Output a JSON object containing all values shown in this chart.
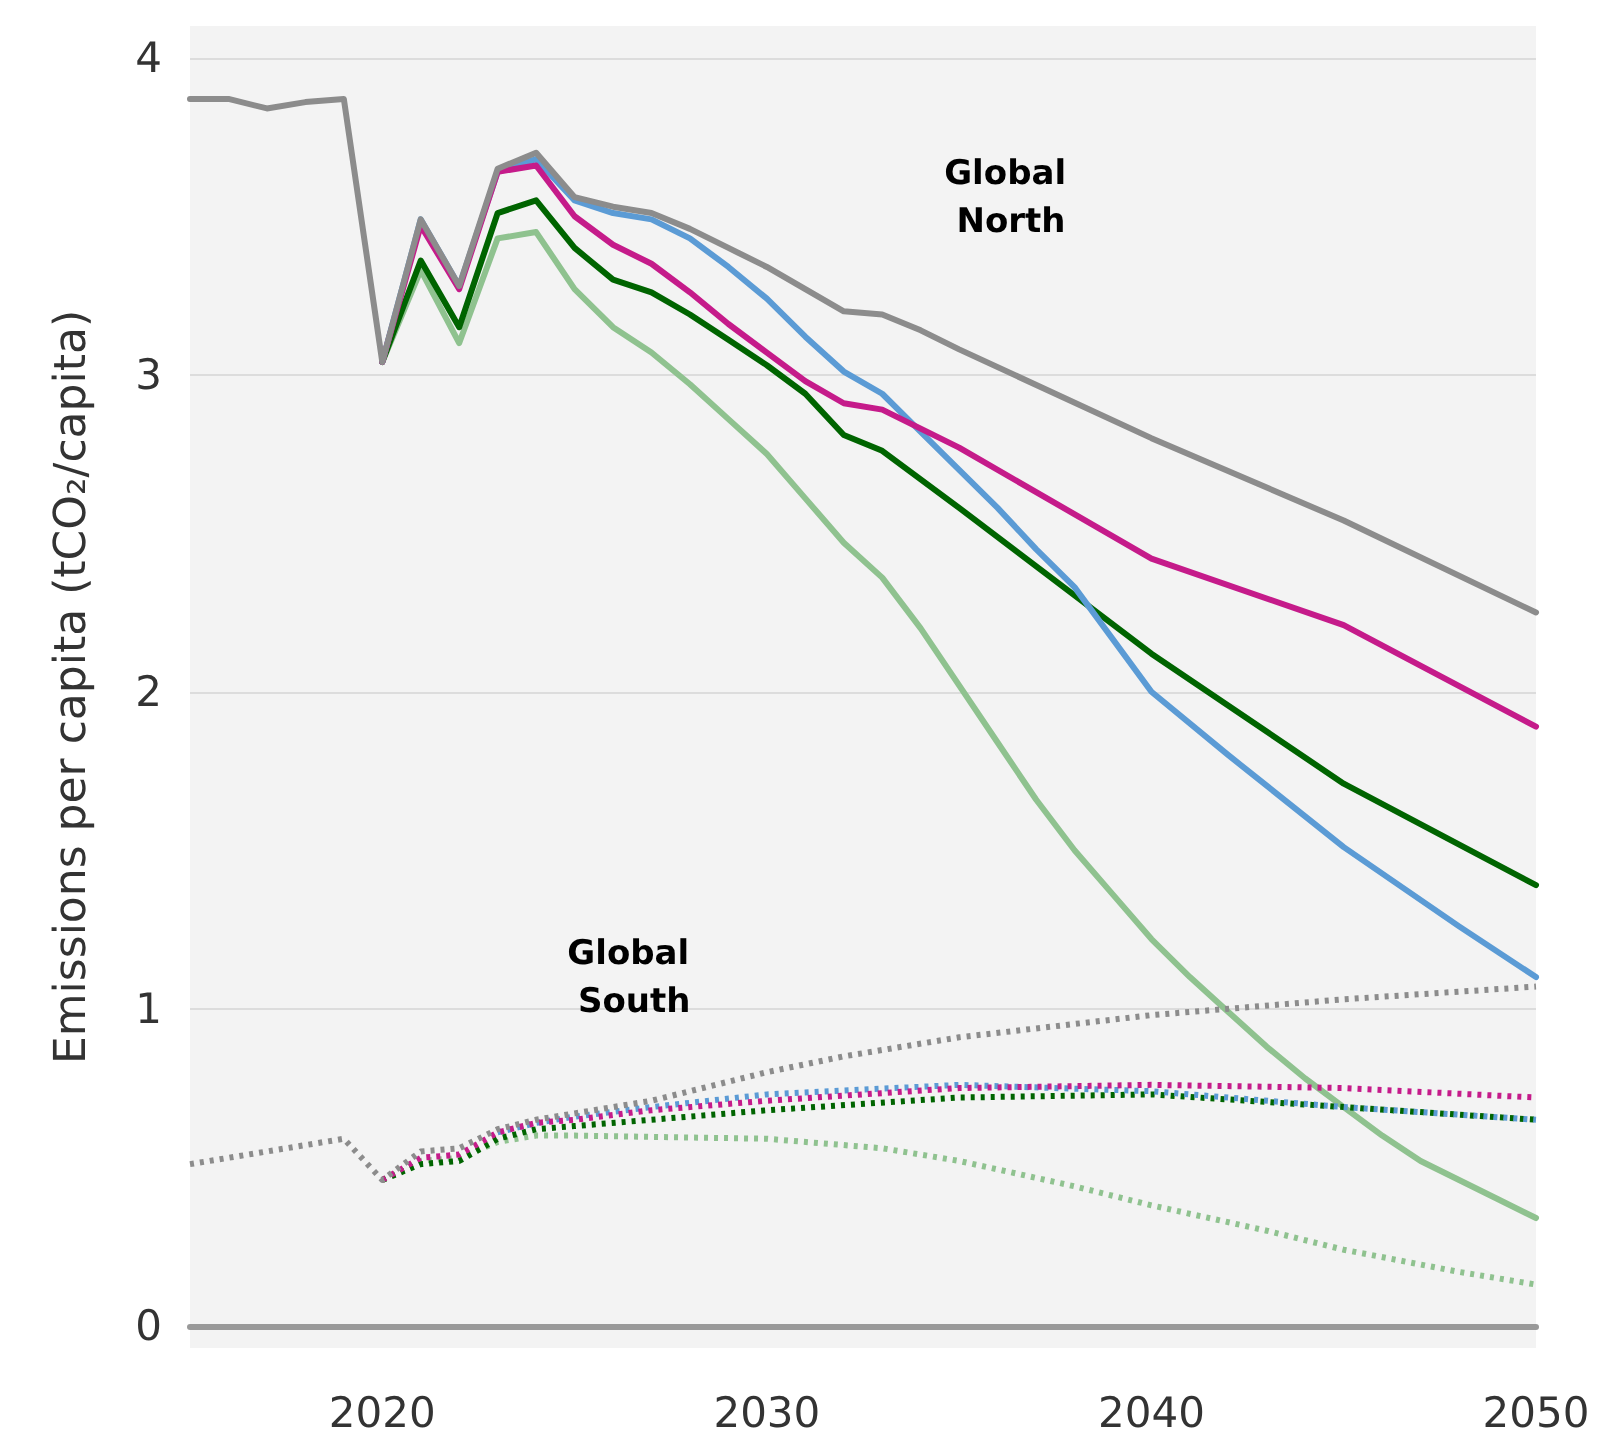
{
  "chart_data": {
    "type": "line",
    "ylabel": "Emissions per capita (tCO₂/capita)",
    "xlim": [
      2015,
      2050
    ],
    "xticks": [
      2020,
      2030,
      2040,
      2050
    ],
    "ylim": [
      -0.07,
      4.1
    ],
    "yticks": [
      0,
      1,
      2,
      3,
      4
    ],
    "grid": "y",
    "marker": "none",
    "annotations": [
      "Global North",
      "Global South"
    ],
    "series": [
      {
        "color": "#8c8c8c",
        "line_style": "solid",
        "x": [
          2015,
          2016,
          2017,
          2018,
          2019,
          2020,
          2021,
          2022,
          2023,
          2024,
          2025,
          2026,
          2027,
          2028,
          2029,
          2030,
          2031,
          2032,
          2033,
          2034,
          2035,
          2040,
          2045,
          2050
        ],
        "values": [
          3.87,
          3.87,
          3.84,
          3.86,
          3.87,
          3.04,
          3.49,
          3.28,
          3.65,
          3.7,
          3.56,
          3.53,
          3.51,
          3.46,
          3.4,
          3.34,
          3.27,
          3.2,
          3.19,
          3.14,
          3.08,
          2.8,
          2.54,
          2.25
        ]
      },
      {
        "color": "#c51b8a",
        "line_style": "solid",
        "x": [
          2020,
          2021,
          2022,
          2023,
          2024,
          2025,
          2026,
          2027,
          2028,
          2029,
          2030,
          2031,
          2032,
          2033,
          2034,
          2035,
          2040,
          2045,
          2050
        ],
        "values": [
          3.04,
          3.47,
          3.27,
          3.64,
          3.66,
          3.5,
          3.41,
          3.35,
          3.26,
          3.16,
          3.07,
          2.98,
          2.91,
          2.89,
          2.83,
          2.77,
          2.42,
          2.21,
          1.89
        ]
      },
      {
        "color": "#5b9bd5",
        "line_style": "solid",
        "x": [
          2020,
          2021,
          2022,
          2023,
          2024,
          2025,
          2026,
          2027,
          2028,
          2029,
          2030,
          2031,
          2032,
          2033,
          2034,
          2035,
          2036,
          2037,
          2038,
          2040,
          2042,
          2045,
          2048,
          2050
        ],
        "values": [
          3.04,
          3.49,
          3.28,
          3.64,
          3.68,
          3.55,
          3.51,
          3.49,
          3.43,
          3.34,
          3.24,
          3.12,
          3.01,
          2.94,
          2.82,
          2.7,
          2.58,
          2.45,
          2.33,
          2.0,
          1.8,
          1.51,
          1.26,
          1.1
        ]
      },
      {
        "color": "#006400",
        "line_style": "solid",
        "x": [
          2020,
          2021,
          2022,
          2023,
          2024,
          2025,
          2026,
          2027,
          2028,
          2029,
          2030,
          2031,
          2032,
          2033,
          2034,
          2035,
          2040,
          2045,
          2050
        ],
        "values": [
          3.04,
          3.36,
          3.15,
          3.51,
          3.55,
          3.4,
          3.3,
          3.26,
          3.19,
          3.11,
          3.03,
          2.94,
          2.81,
          2.76,
          2.67,
          2.58,
          2.12,
          1.71,
          1.39
        ]
      },
      {
        "color": "#8fc28f",
        "line_style": "solid",
        "x": [
          2020,
          2021,
          2022,
          2023,
          2024,
          2025,
          2026,
          2027,
          2028,
          2029,
          2030,
          2031,
          2032,
          2033,
          2034,
          2035,
          2036,
          2037,
          2038,
          2039,
          2040,
          2041,
          2042,
          2043,
          2044,
          2045,
          2046,
          2047,
          2048,
          2049,
          2050
        ],
        "values": [
          3.04,
          3.33,
          3.1,
          3.43,
          3.45,
          3.27,
          3.15,
          3.07,
          2.97,
          2.86,
          2.75,
          2.61,
          2.47,
          2.36,
          2.2,
          2.02,
          1.84,
          1.66,
          1.5,
          1.36,
          1.22,
          1.1,
          0.99,
          0.88,
          0.78,
          0.69,
          0.6,
          0.52,
          0.46,
          0.4,
          0.34
        ]
      },
      {
        "color": "#8c8c8c",
        "line_style": "dotted",
        "x": [
          2015,
          2016,
          2017,
          2018,
          2019,
          2020,
          2021,
          2022,
          2023,
          2024,
          2025,
          2026,
          2027,
          2028,
          2029,
          2030,
          2032,
          2035,
          2040,
          2045,
          2050
        ],
        "values": [
          0.51,
          0.53,
          0.55,
          0.57,
          0.59,
          0.46,
          0.55,
          0.56,
          0.62,
          0.65,
          0.67,
          0.69,
          0.71,
          0.74,
          0.77,
          0.8,
          0.85,
          0.91,
          0.98,
          1.03,
          1.07
        ]
      },
      {
        "color": "#c51b8a",
        "line_style": "dotted",
        "x": [
          2020,
          2021,
          2022,
          2023,
          2024,
          2025,
          2027,
          2030,
          2035,
          2040,
          2045,
          2050
        ],
        "values": [
          0.46,
          0.53,
          0.54,
          0.61,
          0.64,
          0.65,
          0.68,
          0.71,
          0.75,
          0.76,
          0.75,
          0.72
        ]
      },
      {
        "color": "#5b9bd5",
        "line_style": "dotted",
        "x": [
          2023,
          2024,
          2025,
          2027,
          2030,
          2035,
          2040,
          2045,
          2050
        ],
        "values": [
          0.61,
          0.64,
          0.66,
          0.69,
          0.73,
          0.76,
          0.74,
          0.69,
          0.65
        ]
      },
      {
        "color": "#006400",
        "line_style": "dotted",
        "x": [
          2020,
          2021,
          2022,
          2023,
          2024,
          2025,
          2027,
          2030,
          2035,
          2040,
          2045,
          2050
        ],
        "values": [
          0.46,
          0.51,
          0.52,
          0.59,
          0.62,
          0.63,
          0.65,
          0.68,
          0.72,
          0.73,
          0.69,
          0.65
        ]
      },
      {
        "color": "#8fc28f",
        "line_style": "dotted",
        "x": [
          2020,
          2021,
          2022,
          2023,
          2024,
          2025,
          2030,
          2033,
          2035,
          2038,
          2040,
          2043,
          2045,
          2048,
          2050
        ],
        "values": [
          0.46,
          0.52,
          0.53,
          0.58,
          0.6,
          0.6,
          0.59,
          0.56,
          0.52,
          0.44,
          0.38,
          0.3,
          0.24,
          0.17,
          0.13
        ]
      }
    ]
  }
}
